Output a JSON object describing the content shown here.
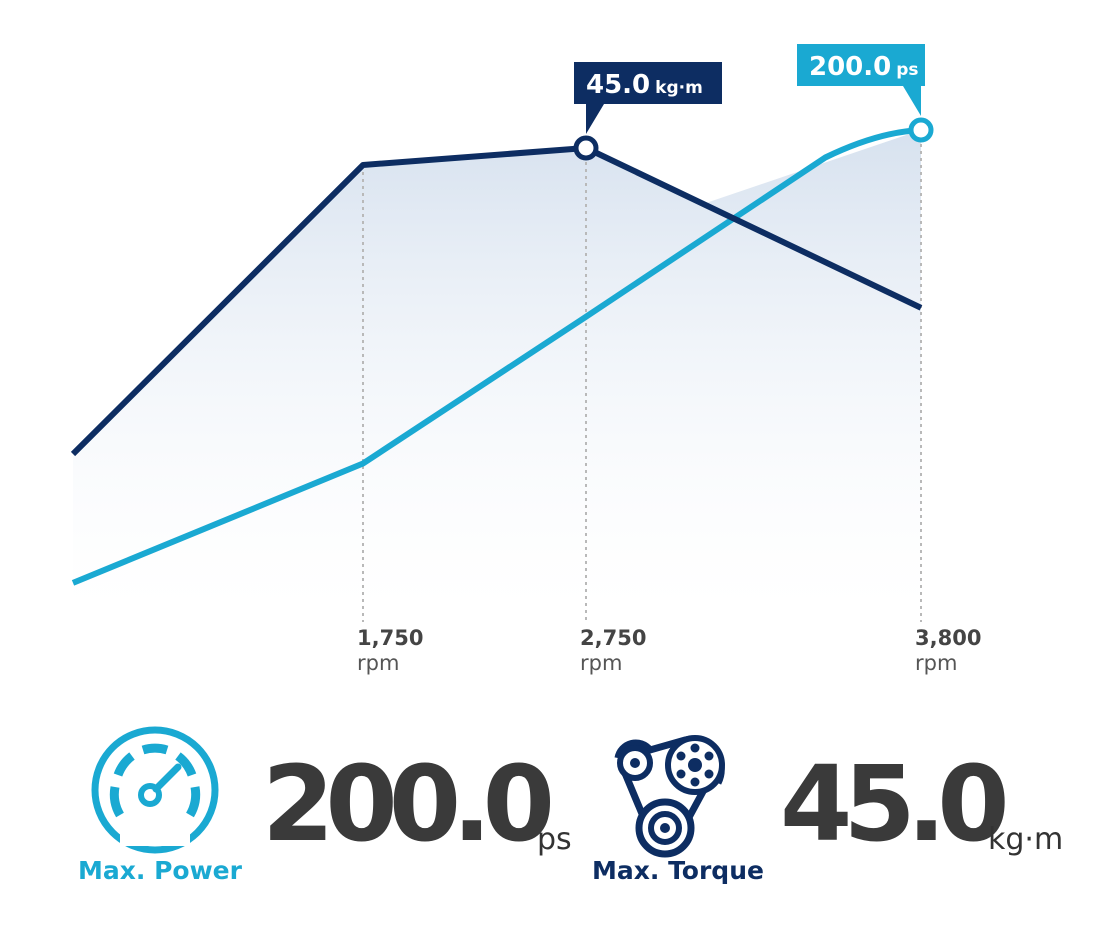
{
  "chart_data": {
    "type": "line",
    "x_unit": "rpm",
    "x_ticks": [
      "1,750",
      "2,750",
      "3,800"
    ],
    "x_tick_unit": "rpm",
    "series": [
      {
        "key": "torque",
        "color": "#0d2d62",
        "x": [
          700,
          1750,
          2750,
          3800
        ],
        "values": [
          27,
          44.0,
          45.0,
          35.6
        ],
        "peak": {
          "x": 2750,
          "label_value": "45.0",
          "label_unit": "kg·m"
        }
      },
      {
        "key": "power",
        "color": "#1aa9d2",
        "x": [
          700,
          1750,
          2750,
          3500,
          3800
        ],
        "values": [
          52,
          91,
          139,
          191,
          200.0
        ],
        "peak": {
          "x": 3800,
          "label_value": "200.0",
          "label_unit": "ps"
        }
      }
    ]
  },
  "specs": {
    "power": {
      "label": "Max. Power",
      "value": "200.0",
      "unit": "ps",
      "color": "#1aa9d2",
      "icon": "speedometer-icon"
    },
    "torque": {
      "label": "Max. Torque",
      "value": "45.0",
      "unit": "kg·m",
      "color": "#0d2d62",
      "icon": "belt-pulley-icon"
    }
  }
}
